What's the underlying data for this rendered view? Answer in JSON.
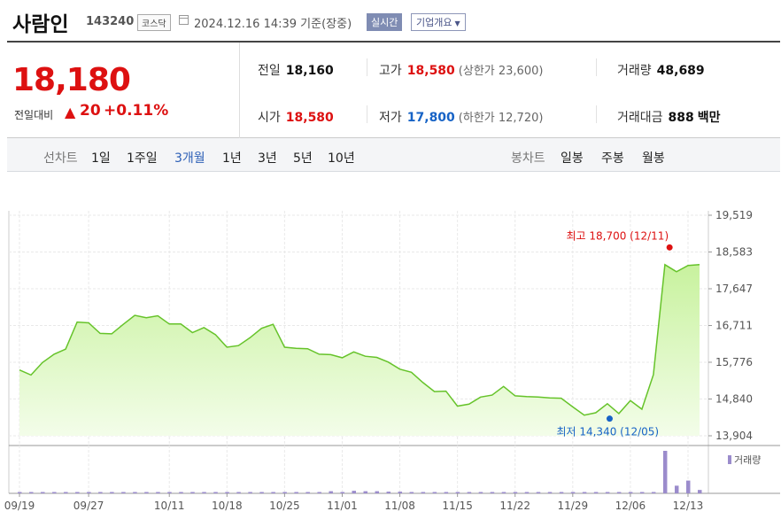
{
  "header": {
    "name": "사람인",
    "code": "143240",
    "market": "코스닥",
    "timestamp": "2024.12.16 14:39  기준(장중)",
    "realtime_label": "실시간",
    "overview_label": "기업개요"
  },
  "quote": {
    "price": "18,180",
    "change_label": "전일대비",
    "change_arrow": "▲",
    "change": "20",
    "change_rate": "+0.11%",
    "prev_close_label": "전일",
    "prev_close": "18,160",
    "high_label": "고가",
    "high": "18,580",
    "upper_limit": "(상한가 23,600)",
    "volume_label": "거래량",
    "volume": "48,689",
    "open_label": "시가",
    "open": "18,580",
    "low_label": "저가",
    "low": "17,800",
    "lower_limit": "(하한가 12,720)",
    "amount_label": "거래대금",
    "amount": "888",
    "amount_unit": "백만"
  },
  "tabs": {
    "line_label": "선차트",
    "periods": [
      "1일",
      "1주일",
      "3개월",
      "1년",
      "3년",
      "5년",
      "10년"
    ],
    "active_period": "3개월",
    "candle_label": "봉차트",
    "candles": [
      "일봉",
      "주봉",
      "월봉"
    ]
  },
  "colors": {
    "up": "#dd1111",
    "down": "#1763c6",
    "line": "#66c32a",
    "area_top": "#c8f29e",
    "volume_bar": "#9b8ccc"
  },
  "chart_data": {
    "type": "area",
    "y_ticks": [
      "19,519",
      "18,583",
      "17,647",
      "16,711",
      "15,776",
      "14,840",
      "13,904"
    ],
    "y_tick_values": [
      19519,
      18583,
      17647,
      16711,
      15776,
      14840,
      13904
    ],
    "ylim": [
      13904,
      19519
    ],
    "x_ticks": [
      "09/19",
      "09/27",
      "10/11",
      "10/18",
      "10/25",
      "11/01",
      "11/08",
      "11/15",
      "11/22",
      "11/29",
      "12/06",
      "12/13"
    ],
    "x_tick_index": [
      0,
      6,
      13,
      18,
      23,
      28,
      33,
      38,
      43,
      48,
      53,
      58
    ],
    "price": [
      15580,
      15450,
      15770,
      15980,
      16110,
      16800,
      16780,
      16510,
      16500,
      16740,
      16970,
      16910,
      16960,
      16750,
      16750,
      16530,
      16660,
      16480,
      16160,
      16200,
      16400,
      16640,
      16740,
      16160,
      16130,
      16120,
      15980,
      15970,
      15890,
      16040,
      15930,
      15900,
      15780,
      15600,
      15520,
      15260,
      15030,
      15040,
      14660,
      14710,
      14890,
      14940,
      15160,
      14920,
      14900,
      14890,
      14870,
      14860,
      14640,
      14430,
      14490,
      14720,
      14470,
      14800,
      14580,
      15460,
      18260,
      18080,
      18240,
      18260
    ],
    "volume_label": "거래량",
    "volume_relative": [
      0.02,
      0.02,
      0.02,
      0.02,
      0.02,
      0.02,
      0.02,
      0.02,
      0.02,
      0.02,
      0.02,
      0.02,
      0.02,
      0.02,
      0.02,
      0.02,
      0.02,
      0.02,
      0.02,
      0.02,
      0.02,
      0.02,
      0.02,
      0.02,
      0.02,
      0.02,
      0.02,
      0.05,
      0.02,
      0.06,
      0.05,
      0.05,
      0.04,
      0.04,
      0.03,
      0.03,
      0.03,
      0.03,
      0.03,
      0.03,
      0.03,
      0.03,
      0.03,
      0.02,
      0.03,
      0.03,
      0.03,
      0.03,
      0.03,
      0.02,
      0.03,
      0.02,
      0.02,
      0.03,
      0.02,
      0.02,
      1.0,
      0.18,
      0.3,
      0.08
    ],
    "max_annotation": "최고 18,700 (12/11)",
    "max_value": 18700,
    "max_index": 56.4,
    "min_annotation": "최저 14,340 (12/05)",
    "min_value": 14340,
    "min_index": 51.2
  }
}
